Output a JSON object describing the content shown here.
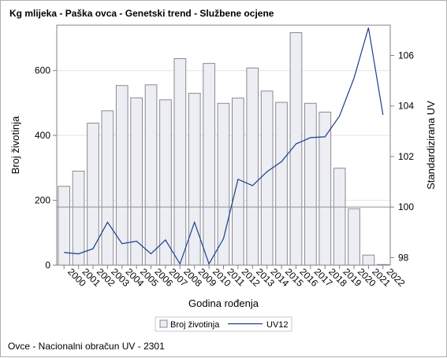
{
  "title": "Kg mlijeka - Paška ovca - Genetski trend - Službene ocjene",
  "footnote": "Ovce - Nacionalni obračun UV - 2301",
  "colors": {
    "bar_fill": "#eceef3",
    "bar_stroke": "#8a8a94",
    "line": "#1a3e8c",
    "grid": "#e4e4e4",
    "ref_line": "#909090",
    "axis": "#808080"
  },
  "chart_data": {
    "type": "bar+line",
    "title": "Kg mlijeka - Paška ovca - Genetski trend - Službene ocjene",
    "xlabel": "Godina rođenja",
    "ylabel_left": "Broj životinja",
    "ylabel_right": "Standardizirana UV",
    "categories": [
      "2000",
      "2001",
      "2002",
      "2003",
      "2004",
      "2005",
      "2006",
      "2007",
      "2008",
      "2009",
      "2010",
      "2011",
      "2012",
      "2013",
      "2014",
      "2015",
      "2016",
      "2017",
      "2018",
      "2019",
      "2020",
      "2021",
      "2022"
    ],
    "bars": {
      "name": "Broj životinja",
      "axis": "left",
      "values": [
        243,
        290,
        438,
        476,
        554,
        516,
        556,
        510,
        637,
        530,
        622,
        499,
        515,
        608,
        537,
        502,
        717,
        499,
        472,
        299,
        174,
        31,
        2
      ]
    },
    "line": {
      "name": "UV12",
      "axis": "right",
      "values": [
        98.2,
        98.15,
        98.35,
        99.4,
        98.55,
        98.65,
        98.15,
        98.7,
        97.75,
        99.4,
        97.75,
        98.75,
        101.1,
        100.85,
        101.4,
        101.8,
        102.5,
        102.75,
        102.78,
        103.6,
        105.1,
        107.1,
        103.65
      ]
    },
    "ylim_left": [
      0,
      740
    ],
    "yticks_left": [
      0,
      200,
      400,
      600
    ],
    "ylim_right": [
      97.7,
      107.2
    ],
    "yticks_right": [
      98,
      100,
      102,
      104,
      106
    ],
    "reference_line": {
      "axis": "right",
      "value": 100
    },
    "grid": true,
    "legend_position": "bottom-center"
  }
}
